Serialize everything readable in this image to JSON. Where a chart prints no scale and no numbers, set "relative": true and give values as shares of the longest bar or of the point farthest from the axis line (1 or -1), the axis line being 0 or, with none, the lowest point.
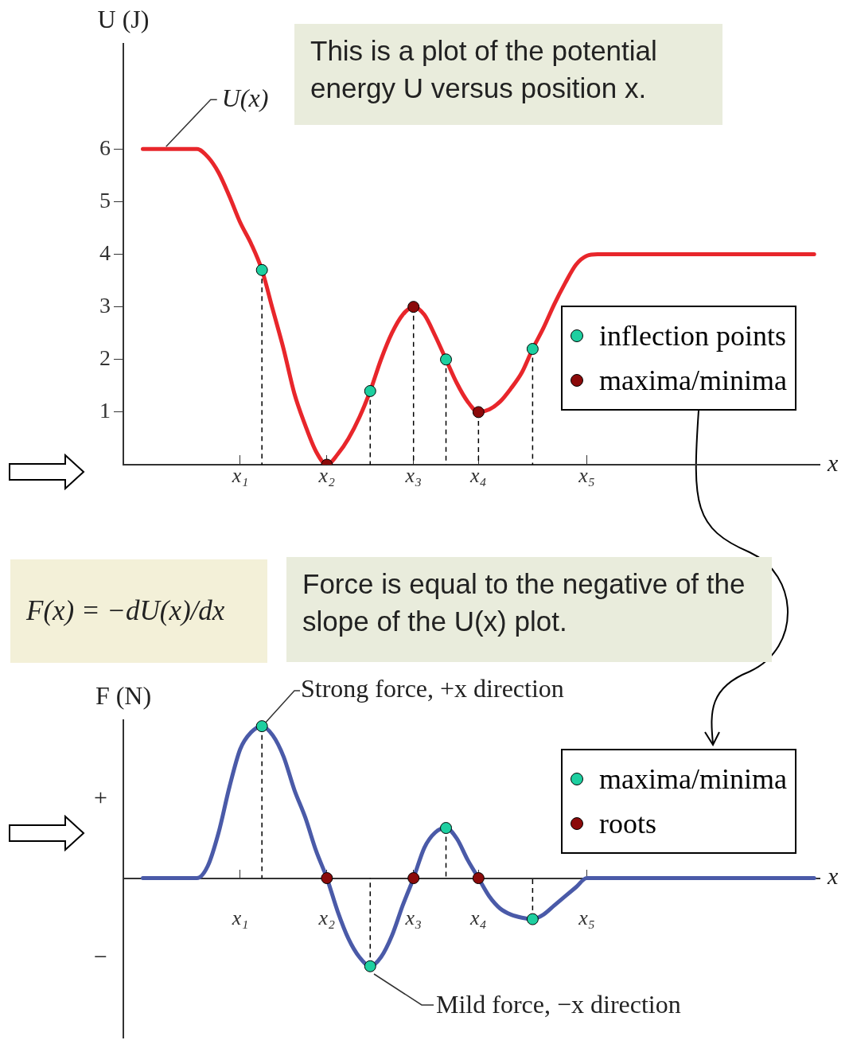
{
  "chart_data": [
    {
      "type": "line",
      "ylabel": "U (J)",
      "xlabel": "x",
      "categories": [
        null,
        null,
        null,
        null,
        null,
        null,
        null,
        null,
        null,
        "x₁",
        null,
        null,
        null,
        null,
        null,
        null,
        null,
        "x₂",
        null,
        null,
        null,
        null,
        null,
        null,
        null,
        "x₃",
        null,
        null,
        null,
        null,
        null,
        "x₄",
        null,
        null,
        null,
        null,
        null,
        null,
        null,
        null,
        null,
        "x₅",
        null,
        null,
        null,
        null,
        null,
        null,
        null,
        null,
        null,
        null,
        null,
        null,
        null,
        null,
        null,
        null,
        null,
        null,
        null,
        null,
        null
      ],
      "ylim": [
        0,
        8
      ],
      "yticks": [
        1,
        2,
        3,
        4,
        5,
        6
      ],
      "grid": false,
      "legend": "right",
      "series": [
        {
          "name": "U(x)",
          "color": "#e8262b",
          "values": [
            6,
            6,
            6,
            6,
            6,
            6,
            5.85,
            5.55,
            5.1,
            4.6,
            4.2,
            3.7,
            2.95,
            2.2,
            1.35,
            0.75,
            0.25,
            0,
            0.2,
            0.5,
            0.9,
            1.4,
            2.0,
            2.5,
            2.85,
            3.0,
            2.85,
            2.45,
            2.0,
            1.55,
            1.2,
            1.0,
            1.05,
            1.2,
            1.45,
            1.75,
            2.2,
            2.6,
            3.05,
            3.45,
            3.8,
            3.97,
            4,
            4,
            4,
            4,
            4,
            4,
            4,
            4,
            4,
            4,
            4,
            4,
            4,
            4,
            4,
            4,
            4,
            4,
            4,
            4,
            4
          ]
        },
        {
          "type": "scatter",
          "name": "inflection points",
          "color": "#1ecfa0",
          "marker": "circle",
          "values": [
            null,
            null,
            null,
            null,
            null,
            null,
            null,
            null,
            null,
            null,
            null,
            3.7,
            null,
            null,
            null,
            null,
            null,
            null,
            null,
            null,
            null,
            1.4,
            null,
            null,
            null,
            null,
            null,
            null,
            2.0,
            null,
            null,
            null,
            null,
            null,
            null,
            null,
            2.2,
            null,
            null,
            null,
            null,
            null,
            null,
            null,
            null,
            null,
            null,
            null,
            null,
            null,
            null,
            null,
            null,
            null,
            null,
            null,
            null,
            null,
            null,
            null,
            null,
            null,
            null
          ]
        },
        {
          "type": "scatter",
          "name": "maxima/minima",
          "color": "#8b0a0a",
          "marker": "circle",
          "values": [
            null,
            null,
            null,
            null,
            null,
            null,
            null,
            null,
            null,
            null,
            null,
            null,
            null,
            null,
            null,
            null,
            null,
            0,
            null,
            null,
            null,
            null,
            null,
            null,
            null,
            3.0,
            null,
            null,
            null,
            null,
            null,
            1.0,
            null,
            null,
            null,
            null,
            null,
            null,
            null,
            null,
            null,
            null,
            null,
            null,
            null,
            null,
            null,
            null,
            null,
            null,
            null,
            null,
            null,
            null,
            null,
            null,
            null,
            null,
            null,
            null,
            null,
            null,
            null
          ]
        }
      ],
      "annotations": [
        "This is a plot of the potential energy U versus position x."
      ]
    },
    {
      "type": "line",
      "ylabel": "F (N)",
      "xlabel": "x",
      "relative": true,
      "categories": [
        null,
        null,
        null,
        null,
        null,
        null,
        null,
        null,
        null,
        "x₁",
        null,
        null,
        null,
        null,
        null,
        null,
        null,
        "x₂",
        null,
        null,
        null,
        null,
        null,
        null,
        null,
        "x₃",
        null,
        null,
        null,
        null,
        null,
        "x₄",
        null,
        null,
        null,
        null,
        null,
        null,
        null,
        null,
        null,
        "x₅",
        null,
        null,
        null,
        null,
        null,
        null,
        null,
        null,
        null,
        null,
        null,
        null,
        null,
        null,
        null,
        null,
        null,
        null,
        null,
        null,
        null
      ],
      "grid": false,
      "legend": "right",
      "series": [
        {
          "color": "#4a5aa8",
          "values": [
            0,
            0,
            0,
            0,
            0,
            0,
            0.08,
            0.3,
            0.6,
            0.85,
            0.96,
            1.0,
            0.94,
            0.8,
            0.58,
            0.4,
            0.18,
            0,
            -0.22,
            -0.4,
            -0.52,
            -0.58,
            -0.52,
            -0.38,
            -0.18,
            0,
            0.2,
            0.3,
            0.33,
            0.26,
            0.12,
            0,
            -0.12,
            -0.2,
            -0.24,
            -0.26,
            -0.27,
            -0.24,
            -0.18,
            -0.12,
            -0.06,
            0,
            0,
            0,
            0,
            0,
            0,
            0,
            0,
            0,
            0,
            0,
            0,
            0,
            0,
            0,
            0,
            0,
            0,
            0,
            0,
            0,
            0
          ]
        },
        {
          "type": "scatter",
          "name": "maxima/minima",
          "color": "#1ecfa0",
          "marker": "circle",
          "values": [
            null,
            null,
            null,
            null,
            null,
            null,
            null,
            null,
            null,
            null,
            null,
            1.0,
            null,
            null,
            null,
            null,
            null,
            null,
            null,
            null,
            null,
            -0.58,
            null,
            null,
            null,
            null,
            null,
            null,
            0.33,
            null,
            null,
            null,
            null,
            null,
            null,
            null,
            -0.27,
            null,
            null,
            null,
            null,
            null,
            null,
            null,
            null,
            null,
            null,
            null,
            null,
            null,
            null,
            null,
            null,
            null,
            null,
            null,
            null,
            null,
            null,
            null,
            null,
            null,
            null
          ]
        },
        {
          "type": "scatter",
          "name": "roots",
          "color": "#8b0a0a",
          "marker": "circle",
          "values": [
            null,
            null,
            null,
            null,
            null,
            null,
            null,
            null,
            null,
            null,
            null,
            null,
            null,
            null,
            null,
            null,
            null,
            0,
            null,
            null,
            null,
            null,
            null,
            null,
            null,
            0,
            null,
            null,
            null,
            null,
            null,
            0,
            null,
            null,
            null,
            null,
            null,
            null,
            null,
            null,
            null,
            null,
            null,
            null,
            null,
            null,
            null,
            null,
            null,
            null,
            null,
            null,
            null,
            null,
            null,
            null,
            null,
            null,
            null,
            null,
            null,
            null,
            null
          ]
        }
      ],
      "annotations": [
        "+",
        "−",
        "F(x) = −dU(x)/dx",
        "Force is equal to the negative of the slope of the U(x) plot.",
        "Strong force, +x direction",
        "Mild force, −x direction"
      ]
    }
  ]
}
